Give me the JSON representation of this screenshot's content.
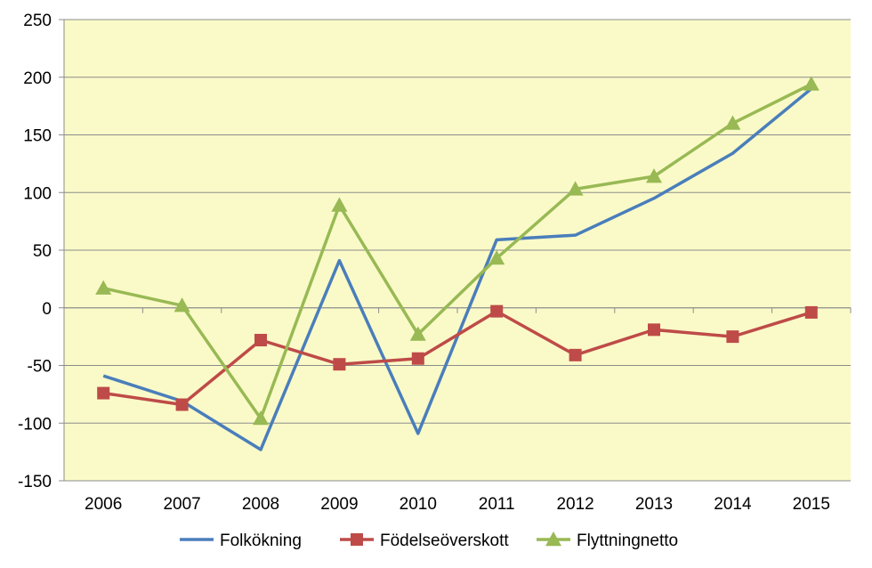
{
  "chart_data": {
    "type": "line",
    "title": "",
    "xlabel": "",
    "ylabel": "",
    "categories": [
      "2006",
      "2007",
      "2008",
      "2009",
      "2010",
      "2011",
      "2012",
      "2013",
      "2014",
      "2015"
    ],
    "ylim": [
      -150,
      250
    ],
    "yticks": [
      250,
      200,
      150,
      100,
      50,
      0,
      -50,
      -100,
      -150
    ],
    "grid": true,
    "plot_background": "#fafac8",
    "legend_position": "bottom",
    "series": [
      {
        "name": "Folkökning",
        "color": "#4a7ebb",
        "marker": "none",
        "values": [
          -59,
          -81,
          -123,
          41,
          -109,
          59,
          63,
          95,
          134,
          190
        ]
      },
      {
        "name": "Födelseöverskott",
        "color": "#be4b48",
        "marker": "square",
        "values": [
          -74,
          -84,
          -28,
          -49,
          -44,
          -3,
          -41,
          -19,
          -25,
          -4
        ]
      },
      {
        "name": "Flyttningnetto",
        "color": "#98b954",
        "marker": "triangle",
        "values": [
          17,
          2,
          -96,
          89,
          -23,
          43,
          103,
          114,
          160,
          194
        ]
      }
    ]
  }
}
